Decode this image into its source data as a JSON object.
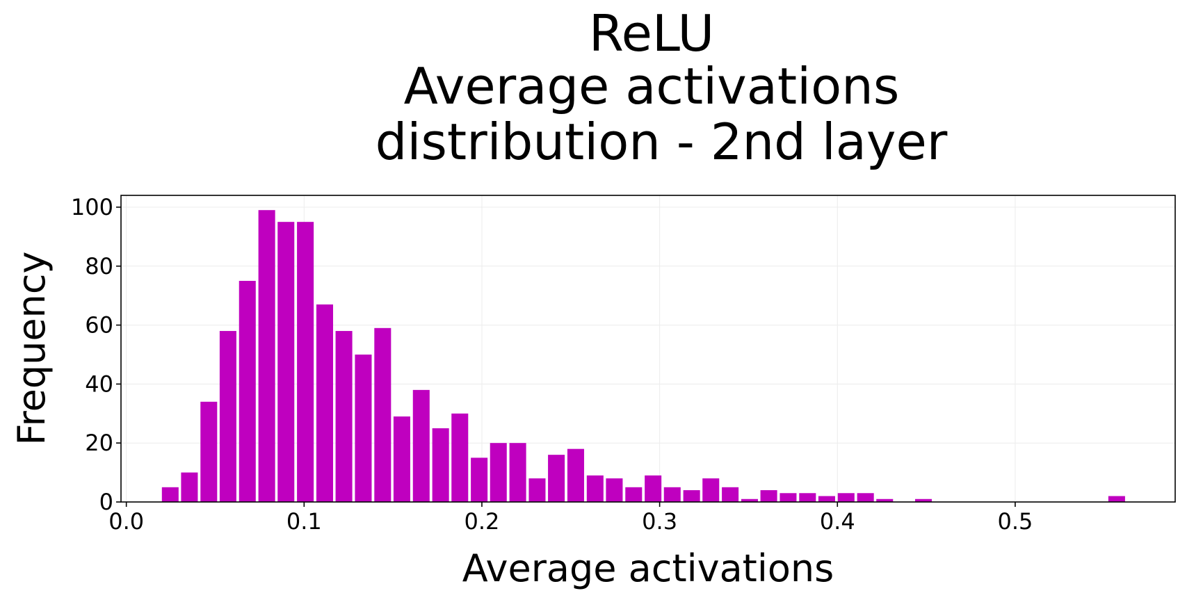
{
  "chart_data": {
    "type": "bar",
    "title_lines": [
      "ReLU",
      "Average activations",
      "distribution - 2nd layer"
    ],
    "xlabel": "Average activations",
    "ylabel": "Frequency",
    "xlim": [
      -0.003,
      0.59
    ],
    "ylim": [
      0,
      104
    ],
    "bar_width": 0.0094,
    "color": "#bf00bf",
    "grid": true,
    "x_ticks": [
      0.0,
      0.1,
      0.2,
      0.3,
      0.4,
      0.5
    ],
    "x_tick_labels": [
      "0.0",
      "0.1",
      "0.2",
      "0.3",
      "0.4",
      "0.5"
    ],
    "y_ticks": [
      0,
      20,
      40,
      60,
      80,
      100
    ],
    "y_tick_labels": [
      "0",
      "20",
      "40",
      "60",
      "80",
      "100"
    ],
    "x": [
      0.0247,
      0.0355,
      0.0464,
      0.0572,
      0.0681,
      0.079,
      0.0898,
      0.1007,
      0.1116,
      0.1224,
      0.1333,
      0.1442,
      0.155,
      0.1659,
      0.1768,
      0.1876,
      0.1985,
      0.2093,
      0.2202,
      0.2311,
      0.2419,
      0.2528,
      0.2637,
      0.2745,
      0.2854,
      0.2963,
      0.3071,
      0.318,
      0.3288,
      0.3397,
      0.3506,
      0.3614,
      0.3723,
      0.3832,
      0.394,
      0.4049,
      0.4158,
      0.4266,
      0.4484,
      0.5571
    ],
    "values": [
      5,
      10,
      34,
      58,
      75,
      99,
      95,
      95,
      67,
      58,
      50,
      59,
      29,
      38,
      25,
      30,
      15,
      20,
      20,
      8,
      16,
      18,
      9,
      8,
      5,
      9,
      5,
      4,
      8,
      5,
      1,
      4,
      3,
      3,
      2,
      3,
      3,
      1,
      1,
      2
    ]
  }
}
